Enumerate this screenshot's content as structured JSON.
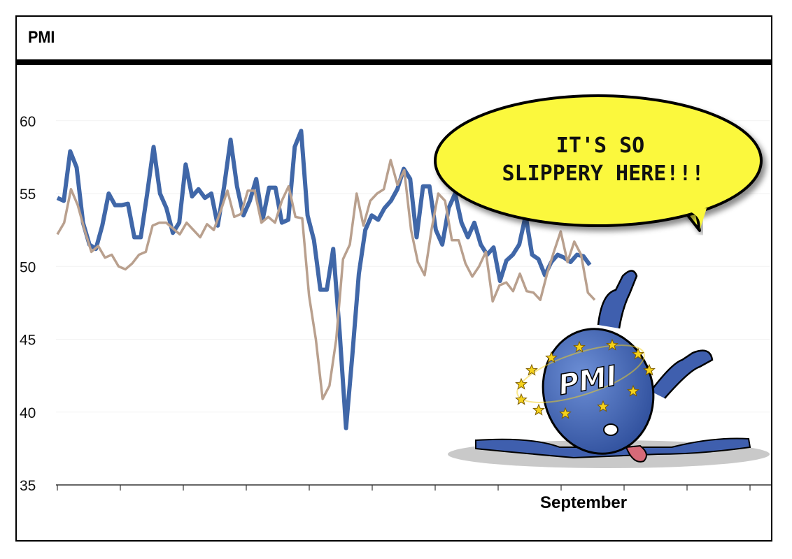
{
  "header": {
    "title": "PMI"
  },
  "chart_data": {
    "type": "line",
    "title": "PMI",
    "xlabel": "",
    "ylabel": "",
    "x_tick_labels": [
      "September"
    ],
    "ylim": [
      35,
      62
    ],
    "yticks": [
      35,
      40,
      45,
      50,
      55,
      60
    ],
    "grid": true,
    "legend": "none",
    "series": [
      {
        "color": "#4067a8",
        "values": [
          54.7,
          54.5,
          57.9,
          56.8,
          53.0,
          51.5,
          51.2,
          52.8,
          55.0,
          54.2,
          54.2,
          54.3,
          52.0,
          52.0,
          55.0,
          58.2,
          55.0,
          54.0,
          52.3,
          53.0,
          57.0,
          54.8,
          55.3,
          54.7,
          55.0,
          52.8,
          55.5,
          58.7,
          55.5,
          53.5,
          54.5,
          56.0,
          53.2,
          55.4,
          55.4,
          53.0,
          53.2,
          58.2,
          59.3,
          53.5,
          51.8,
          48.4,
          48.4,
          51.2,
          45.5,
          38.9,
          44.0,
          49.5,
          52.5,
          53.5,
          53.2,
          54.0,
          54.5,
          55.3,
          56.7,
          56.0,
          52.0,
          55.5,
          55.5,
          52.5,
          51.5,
          54.0,
          55.0,
          53.0,
          52.0,
          53.0,
          51.5,
          50.8,
          51.3,
          49.0,
          50.4,
          50.8,
          51.5,
          53.5,
          50.8,
          50.5,
          49.4,
          50.3,
          50.8,
          50.6,
          50.3,
          50.8,
          50.7,
          50.1
        ]
      },
      {
        "color": "#b9a08e",
        "values": [
          52.2,
          53.0,
          55.3,
          54.2,
          52.5,
          51.0,
          51.4,
          50.6,
          50.8,
          50.0,
          49.8,
          50.2,
          50.8,
          51.0,
          52.8,
          53.0,
          53.0,
          52.6,
          52.2,
          53.0,
          52.5,
          52.0,
          52.9,
          52.5,
          53.8,
          55.2,
          53.4,
          53.6,
          55.2,
          55.2,
          53.0,
          53.4,
          53.0,
          54.5,
          55.5,
          53.4,
          53.3,
          48.0,
          45.0,
          40.9,
          41.8,
          45.0,
          50.5,
          51.5,
          55.0,
          52.8,
          54.5,
          55.0,
          55.3,
          57.3,
          55.6,
          56.6,
          52.5,
          50.3,
          49.4,
          52.5,
          55.0,
          54.5,
          51.8,
          51.8,
          50.2,
          49.3,
          50.0,
          51.0,
          47.6,
          48.7,
          48.9,
          48.3,
          49.5,
          48.3,
          48.2,
          47.7,
          49.5,
          51.0,
          52.4,
          50.3,
          51.7,
          50.8,
          48.2,
          47.7
        ]
      }
    ]
  },
  "bubble": {
    "line1": "IT'S SO",
    "line2": "SLIPPERY HERE!!!"
  },
  "mascot": {
    "label": "PMI"
  },
  "colors": {
    "bubble": "#fbf83c",
    "mascot": "#3f5fae",
    "stars": "#f5d21c"
  }
}
